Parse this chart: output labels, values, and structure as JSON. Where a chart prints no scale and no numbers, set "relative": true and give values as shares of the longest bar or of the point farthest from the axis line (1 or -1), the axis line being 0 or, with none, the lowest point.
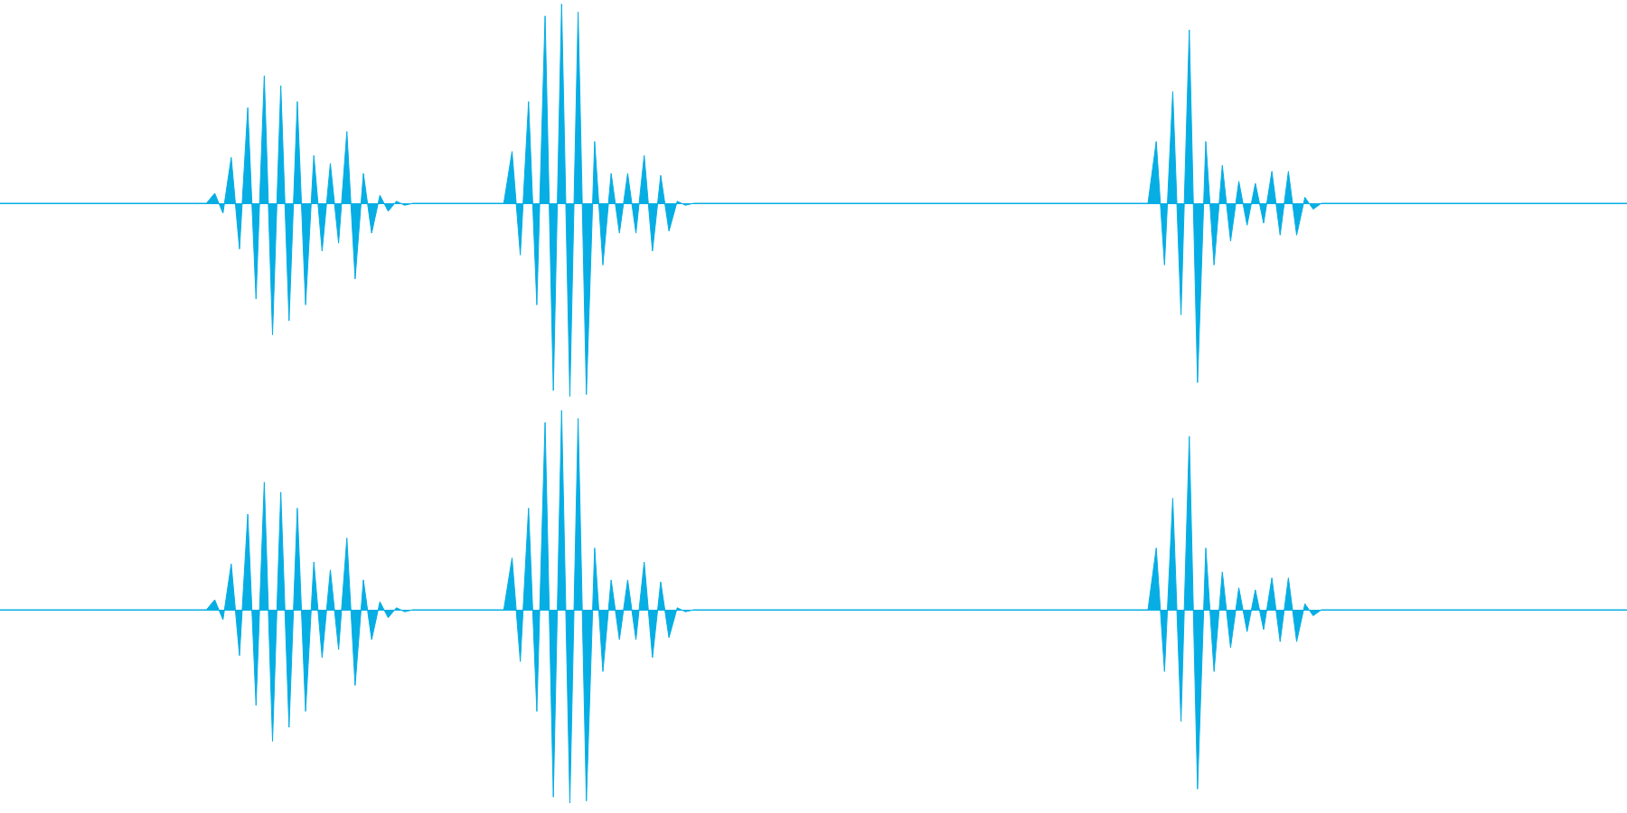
{
  "chart_data": [
    {
      "type": "area",
      "relative": true,
      "categories": [
        null,
        null,
        null,
        null,
        null,
        null,
        null,
        null,
        null,
        null,
        null,
        null,
        null,
        null,
        null,
        null,
        null,
        null,
        null,
        null,
        null,
        null,
        null,
        null,
        null,
        null,
        null,
        null,
        null,
        null,
        null,
        null,
        null,
        null,
        null,
        null,
        null,
        null,
        null,
        null,
        null,
        null,
        null,
        null,
        null,
        null,
        null,
        null,
        null,
        null,
        null,
        null,
        null,
        null,
        null,
        null,
        null,
        null,
        null,
        null,
        null,
        null,
        null,
        null,
        null,
        null,
        null,
        null,
        null,
        null,
        null,
        null,
        null,
        null,
        null,
        null,
        null,
        null,
        null,
        null,
        null,
        null,
        null,
        null,
        null,
        null,
        null,
        null,
        null,
        null,
        null,
        null,
        null,
        null,
        null,
        null,
        null,
        null,
        null,
        null,
        null,
        null,
        null,
        null,
        null,
        null,
        null,
        null,
        null,
        null,
        null,
        null,
        null,
        null,
        null,
        null,
        null,
        null,
        null,
        null,
        null,
        null,
        null,
        null,
        null,
        null,
        null,
        null,
        null,
        null,
        null,
        null,
        null,
        null,
        null,
        null,
        null,
        null,
        null,
        null,
        null,
        null,
        null,
        null,
        null,
        null,
        null,
        null,
        null,
        null,
        null,
        null,
        null,
        null,
        null,
        null,
        null,
        null,
        null,
        null,
        null,
        null,
        null,
        null,
        null,
        null,
        null,
        null,
        null,
        null,
        null,
        null,
        null,
        null,
        null,
        null,
        null,
        null,
        null,
        null,
        null,
        null,
        null,
        null,
        null,
        null,
        null,
        null,
        null,
        null,
        null,
        null,
        null,
        null,
        null,
        null,
        null,
        null
      ],
      "series": [
        {
          "color": "#06aee4",
          "values": [
            0,
            0,
            0,
            0,
            0,
            0,
            0,
            0,
            0,
            0,
            0,
            0,
            0,
            0,
            0,
            0,
            0,
            0,
            0,
            0,
            0,
            0,
            0,
            0,
            0,
            0,
            0.05,
            -0.05,
            0.23,
            -0.23,
            0.48,
            -0.48,
            0.64,
            -0.66,
            0.59,
            -0.59,
            0.51,
            -0.51,
            0.24,
            -0.24,
            0.2,
            -0.2,
            0.36,
            -0.38,
            0.15,
            -0.15,
            0.04,
            -0.04,
            0.01,
            -0.01,
            0,
            0,
            0,
            0,
            0,
            0,
            0,
            0,
            0,
            0,
            0,
            0,
            0.26,
            -0.26,
            0.51,
            -0.51,
            0.94,
            -0.94,
            1,
            -0.97,
            0.96,
            -0.96,
            0.31,
            -0.31,
            0.15,
            -0.15,
            0.15,
            -0.15,
            0.24,
            -0.24,
            0.14,
            -0.14,
            0.01,
            -0.01,
            0,
            0,
            0,
            0,
            0,
            0,
            0,
            0,
            0,
            0,
            0,
            0,
            0,
            0,
            0,
            0,
            0,
            0,
            0,
            0,
            0,
            0,
            0,
            0,
            0,
            0,
            0,
            0,
            0,
            0,
            0,
            0,
            0,
            0,
            0,
            0,
            0,
            0,
            0,
            0,
            0,
            0,
            0,
            0,
            0,
            0,
            0,
            0,
            0,
            0,
            0,
            0,
            0,
            0,
            0,
            0,
            0.31,
            -0.31,
            0.56,
            -0.56,
            0.87,
            -0.9,
            0.31,
            -0.31,
            0.19,
            -0.19,
            0.11,
            -0.11,
            0.1,
            -0.1,
            0.16,
            -0.16,
            0.16,
            -0.16,
            0.03,
            -0.03,
            0,
            0,
            0,
            0,
            0,
            0,
            0,
            0,
            0,
            0,
            0,
            0,
            0,
            0,
            0,
            0,
            0,
            0,
            0,
            0,
            0,
            0,
            0,
            0,
            0,
            0,
            0,
            0,
            0,
            0,
            0,
            0,
            0,
            0,
            0,
            0,
            0,
            0
          ]
        }
      ]
    },
    {
      "type": "area",
      "relative": true,
      "categories": [
        null,
        null,
        null,
        null,
        null,
        null,
        null,
        null,
        null,
        null,
        null,
        null,
        null,
        null,
        null,
        null,
        null,
        null,
        null,
        null,
        null,
        null,
        null,
        null,
        null,
        null,
        null,
        null,
        null,
        null,
        null,
        null,
        null,
        null,
        null,
        null,
        null,
        null,
        null,
        null,
        null,
        null,
        null,
        null,
        null,
        null,
        null,
        null,
        null,
        null,
        null,
        null,
        null,
        null,
        null,
        null,
        null,
        null,
        null,
        null,
        null,
        null,
        null,
        null,
        null,
        null,
        null,
        null,
        null,
        null,
        null,
        null,
        null,
        null,
        null,
        null,
        null,
        null,
        null,
        null,
        null,
        null,
        null,
        null,
        null,
        null,
        null,
        null,
        null,
        null,
        null,
        null,
        null,
        null,
        null,
        null,
        null,
        null,
        null,
        null,
        null,
        null,
        null,
        null,
        null,
        null,
        null,
        null,
        null,
        null,
        null,
        null,
        null,
        null,
        null,
        null,
        null,
        null,
        null,
        null,
        null,
        null,
        null,
        null,
        null,
        null,
        null,
        null,
        null,
        null,
        null,
        null,
        null,
        null,
        null,
        null,
        null,
        null,
        null,
        null,
        null,
        null,
        null,
        null,
        null,
        null,
        null,
        null,
        null,
        null,
        null,
        null,
        null,
        null,
        null,
        null,
        null,
        null,
        null,
        null,
        null,
        null,
        null,
        null,
        null,
        null,
        null,
        null,
        null,
        null,
        null,
        null,
        null,
        null,
        null,
        null,
        null,
        null,
        null,
        null,
        null,
        null,
        null,
        null,
        null,
        null,
        null,
        null,
        null,
        null,
        null,
        null,
        null,
        null,
        null,
        null,
        null,
        null
      ],
      "series": [
        {
          "color": "#06aee4",
          "values": [
            0,
            0,
            0,
            0,
            0,
            0,
            0,
            0,
            0,
            0,
            0,
            0,
            0,
            0,
            0,
            0,
            0,
            0,
            0,
            0,
            0,
            0,
            0,
            0,
            0,
            0,
            0.05,
            -0.05,
            0.23,
            -0.23,
            0.48,
            -0.48,
            0.64,
            -0.66,
            0.59,
            -0.59,
            0.51,
            -0.51,
            0.24,
            -0.24,
            0.2,
            -0.2,
            0.36,
            -0.38,
            0.15,
            -0.15,
            0.04,
            -0.04,
            0.01,
            -0.01,
            0,
            0,
            0,
            0,
            0,
            0,
            0,
            0,
            0,
            0,
            0,
            0,
            0.26,
            -0.26,
            0.51,
            -0.51,
            0.94,
            -0.94,
            1,
            -0.97,
            0.96,
            -0.96,
            0.31,
            -0.31,
            0.15,
            -0.15,
            0.15,
            -0.15,
            0.24,
            -0.24,
            0.14,
            -0.14,
            0.01,
            -0.01,
            0,
            0,
            0,
            0,
            0,
            0,
            0,
            0,
            0,
            0,
            0,
            0,
            0,
            0,
            0,
            0,
            0,
            0,
            0,
            0,
            0,
            0,
            0,
            0,
            0,
            0,
            0,
            0,
            0,
            0,
            0,
            0,
            0,
            0,
            0,
            0,
            0,
            0,
            0,
            0,
            0,
            0,
            0,
            0,
            0,
            0,
            0,
            0,
            0,
            0,
            0,
            0,
            0,
            0,
            0,
            0,
            0.31,
            -0.31,
            0.56,
            -0.56,
            0.87,
            -0.9,
            0.31,
            -0.31,
            0.19,
            -0.19,
            0.11,
            -0.11,
            0.1,
            -0.1,
            0.16,
            -0.16,
            0.16,
            -0.16,
            0.03,
            -0.03,
            0,
            0,
            0,
            0,
            0,
            0,
            0,
            0,
            0,
            0,
            0,
            0,
            0,
            0,
            0,
            0,
            0,
            0,
            0,
            0,
            0,
            0,
            0,
            0,
            0,
            0,
            0,
            0,
            0,
            0,
            0,
            0,
            0,
            0,
            0,
            0,
            0,
            0
          ]
        }
      ]
    }
  ]
}
